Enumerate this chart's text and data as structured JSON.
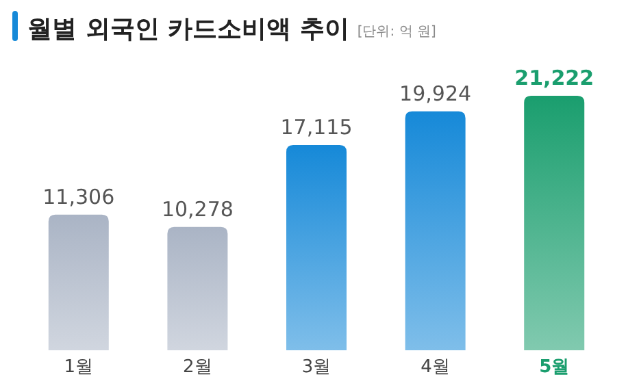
{
  "chart_data": {
    "type": "bar",
    "title": "월별 외국인 카드소비액 추이",
    "subtitle": "[단위: 억 원]",
    "categories": [
      "1월",
      "2월",
      "3월",
      "4월",
      "5월"
    ],
    "values": [
      11306,
      10278,
      17115,
      19924,
      21222
    ],
    "colors": [
      "#aab4c5",
      "#aab4c5",
      "#1689d8",
      "#1689d8",
      "#1a9e6e"
    ],
    "value_labels": [
      "11,306",
      "10,278",
      "17,115",
      "19,924",
      "21,222"
    ]
  }
}
